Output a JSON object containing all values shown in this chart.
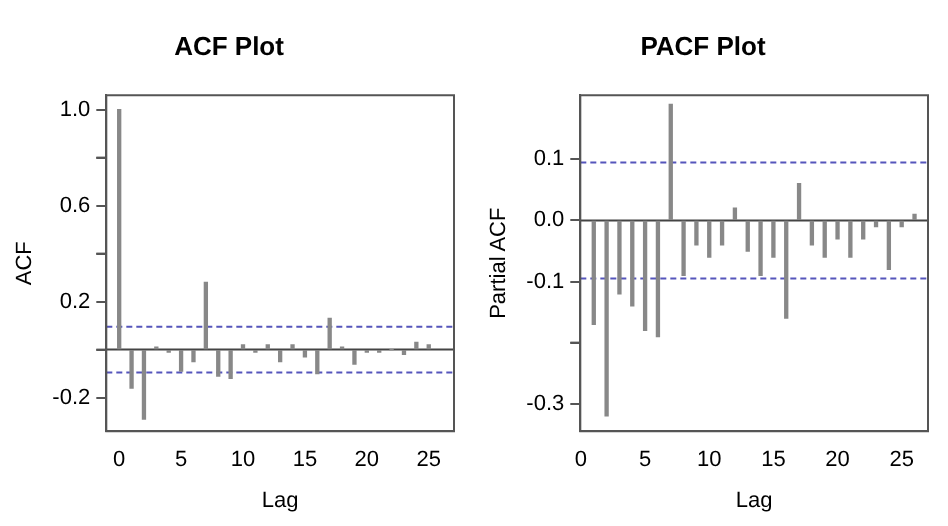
{
  "chart_data": [
    {
      "type": "bar",
      "title": "ACF Plot",
      "xlabel": "Lag",
      "ylabel": "ACF",
      "grid": false,
      "legend": false,
      "x": [
        0,
        1,
        2,
        3,
        4,
        5,
        6,
        7,
        8,
        9,
        10,
        11,
        12,
        13,
        14,
        15,
        16,
        17,
        18,
        19,
        20,
        21,
        22,
        23,
        24,
        25
      ],
      "series": [
        {
          "color": "#888888",
          "values": [
            1.0,
            -0.16,
            -0.29,
            0.01,
            -0.01,
            -0.09,
            -0.05,
            0.28,
            -0.11,
            -0.12,
            0.02,
            -0.01,
            0.02,
            -0.05,
            0.02,
            -0.03,
            -0.1,
            0.13,
            0.01,
            -0.06,
            -0.01,
            -0.01,
            0,
            -0.02,
            0.03,
            0.02
          ]
        }
      ],
      "xlim": [
        -1.04,
        27.04
      ],
      "ylim": [
        -0.34,
        1.06
      ],
      "xticks": [
        0,
        5,
        10,
        15,
        20,
        25
      ],
      "yticks": [
        -0.2,
        {
          "value": 0,
          "label": null
        },
        0.2,
        {
          "value": 0.4,
          "label": null
        },
        0.6,
        {
          "value": 0.8,
          "label": null
        },
        {
          "value": 1,
          "label": "1.0"
        }
      ],
      "ref_lines": [
        {
          "axis": "y",
          "value": 0,
          "color": "#444444",
          "line_style": "solid"
        },
        {
          "axis": "y",
          "value": 0.095,
          "color": "#5555bb",
          "line_style": "dashed"
        },
        {
          "axis": "y",
          "value": -0.095,
          "color": "#5555bb",
          "line_style": "dashed"
        }
      ]
    },
    {
      "type": "bar",
      "title": "PACF Plot",
      "xlabel": "Lag",
      "ylabel": "Partial ACF",
      "grid": false,
      "legend": false,
      "x": [
        1,
        2,
        3,
        4,
        5,
        6,
        7,
        8,
        9,
        10,
        11,
        12,
        13,
        14,
        15,
        16,
        17,
        18,
        19,
        20,
        21,
        22,
        23,
        24,
        25,
        26
      ],
      "series": [
        {
          "color": "#888888",
          "values": [
            -0.17,
            -0.32,
            -0.12,
            -0.14,
            -0.18,
            -0.19,
            0.19,
            -0.09,
            -0.04,
            -0.06,
            -0.04,
            0.02,
            -0.05,
            -0.09,
            -0.06,
            -0.16,
            0.06,
            -0.04,
            -0.06,
            -0.03,
            -0.06,
            -0.03,
            -0.01,
            -0.08,
            -0.01,
            0.01
          ]
        }
      ],
      "xlim": [
        -0.05,
        27.05
      ],
      "ylim": [
        -0.345,
        0.205
      ],
      "xticks": [
        0,
        5,
        10,
        15,
        20,
        25
      ],
      "yticks": [
        {
          "value": -0.3,
          "label": "-0.3"
        },
        {
          "value": -0.2,
          "label": null
        },
        -0.1,
        {
          "value": 0,
          "label": "0.0"
        },
        0.1
      ],
      "ref_lines": [
        {
          "axis": "y",
          "value": 0,
          "color": "#444444",
          "line_style": "solid"
        },
        {
          "axis": "y",
          "value": 0.095,
          "color": "#5555bb",
          "line_style": "dashed"
        },
        {
          "axis": "y",
          "value": -0.095,
          "color": "#5555bb",
          "line_style": "dashed"
        }
      ]
    }
  ]
}
